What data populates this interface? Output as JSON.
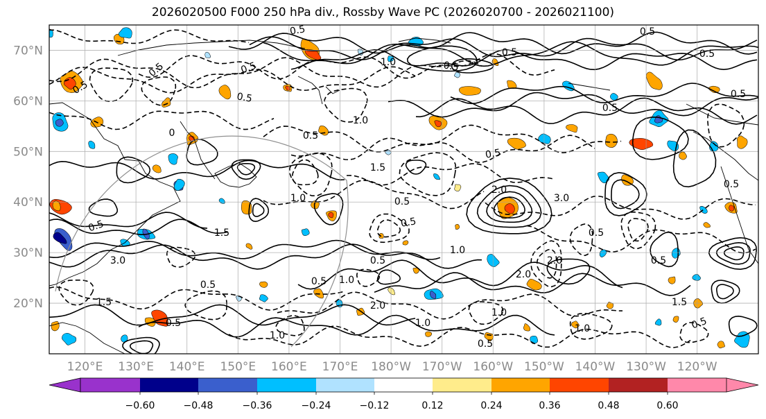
{
  "title": "2026020500 F000 250 hPa div., Rossby Wave PC (2026020700 - 2026021100)",
  "lat_labels": [
    "70°N",
    "60°N",
    "50°N",
    "40°N",
    "30°N",
    "20°N"
  ],
  "lat_values": [
    70,
    60,
    50,
    40,
    30,
    20
  ],
  "lon_labels": [
    "120°E",
    "130°E",
    "140°E",
    "150°E",
    "160°E",
    "170°E",
    "180°W",
    "170°W",
    "160°W",
    "150°W",
    "140°W",
    "130°W",
    "120°W"
  ],
  "lon_values": [
    120,
    130,
    140,
    150,
    160,
    170,
    180,
    190,
    200,
    210,
    220,
    230,
    240
  ],
  "extent": {
    "lon_min": 113,
    "lon_max": 252,
    "lat_min": 10,
    "lat_max": 75
  },
  "colorbar": {
    "levels": [
      -0.6,
      -0.48,
      -0.36,
      -0.24,
      -0.12,
      0.12,
      0.24,
      0.36,
      0.48,
      0.6
    ],
    "labels": [
      "−0.60",
      "−0.48",
      "−0.36",
      "−0.24",
      "−0.12",
      "0.12",
      "0.24",
      "0.36",
      "0.48",
      "0.60"
    ],
    "colors": [
      "#9932cc",
      "#00008b",
      "#3a5fcd",
      "#00bfff",
      "#b0e2ff",
      "#ffffff",
      "#ffec8b",
      "#ffa500",
      "#ff4500",
      "#b22222",
      "#ff88aa"
    ],
    "extend": "both"
  },
  "contour_labels": [
    "0.5",
    "1.0",
    "1.5",
    "2.0",
    "3.0",
    "0"
  ],
  "colors": {
    "fill_pos_1": "#ffec8b",
    "fill_pos_2": "#ffa500",
    "fill_pos_3": "#ff4500",
    "fill_neg_1": "#b0e2ff",
    "fill_neg_2": "#00bfff",
    "fill_neg_3": "#3a5fcd",
    "fill_neg_4": "#00008b",
    "contour": "#000000",
    "grid": "#a0a0a0",
    "tick_label": "#8a8a8a"
  }
}
